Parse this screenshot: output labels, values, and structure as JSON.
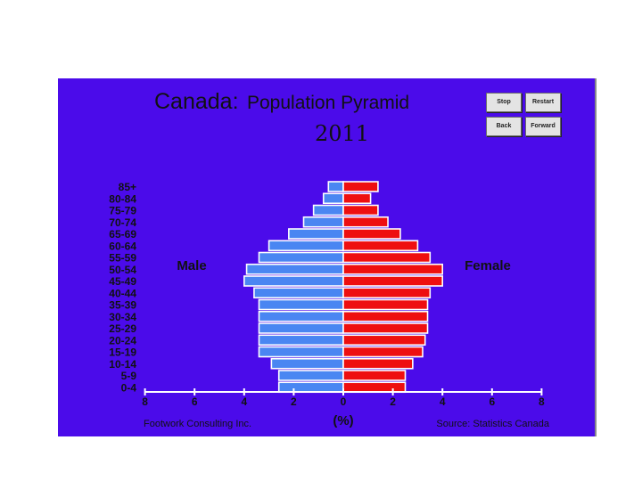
{
  "title": {
    "country": "Canada:",
    "main": "Population Pyramid",
    "year": "2011"
  },
  "controls": {
    "stop": "Stop",
    "restart": "Restart",
    "back": "Back",
    "forward": "Forward"
  },
  "footer": {
    "left": "Footwork Consulting Inc.",
    "right": "Source: Statistics Canada"
  },
  "colors": {
    "background": "#4B0BEA",
    "male": "#4A86F2",
    "female": "#EE0F10",
    "text": "#111111"
  },
  "chart_data": {
    "type": "bar",
    "orientation": "horizontal",
    "title": "Canada: Population Pyramid",
    "subtitle": "2011",
    "categories": [
      "85+",
      "80-84",
      "75-79",
      "70-74",
      "65-69",
      "60-64",
      "55-59",
      "50-54",
      "45-49",
      "40-44",
      "35-39",
      "30-34",
      "25-29",
      "20-24",
      "15-19",
      "10-14",
      "5-9",
      "0-4"
    ],
    "series": [
      {
        "name": "Male",
        "side": "left",
        "values": [
          0.6,
          0.8,
          1.2,
          1.6,
          2.2,
          3.0,
          3.4,
          3.9,
          4.0,
          3.6,
          3.4,
          3.4,
          3.4,
          3.4,
          3.4,
          2.9,
          2.6,
          2.6
        ]
      },
      {
        "name": "Female",
        "side": "right",
        "values": [
          1.4,
          1.1,
          1.4,
          1.8,
          2.3,
          3.0,
          3.5,
          4.0,
          4.0,
          3.5,
          3.4,
          3.4,
          3.4,
          3.3,
          3.2,
          2.8,
          2.5,
          2.5
        ]
      }
    ],
    "xlabel": "(%)",
    "xlim": [
      -8,
      8
    ],
    "xticks": [
      "8",
      "6",
      "4",
      "2",
      "0",
      "2",
      "4",
      "6",
      "8"
    ],
    "grid": false
  }
}
